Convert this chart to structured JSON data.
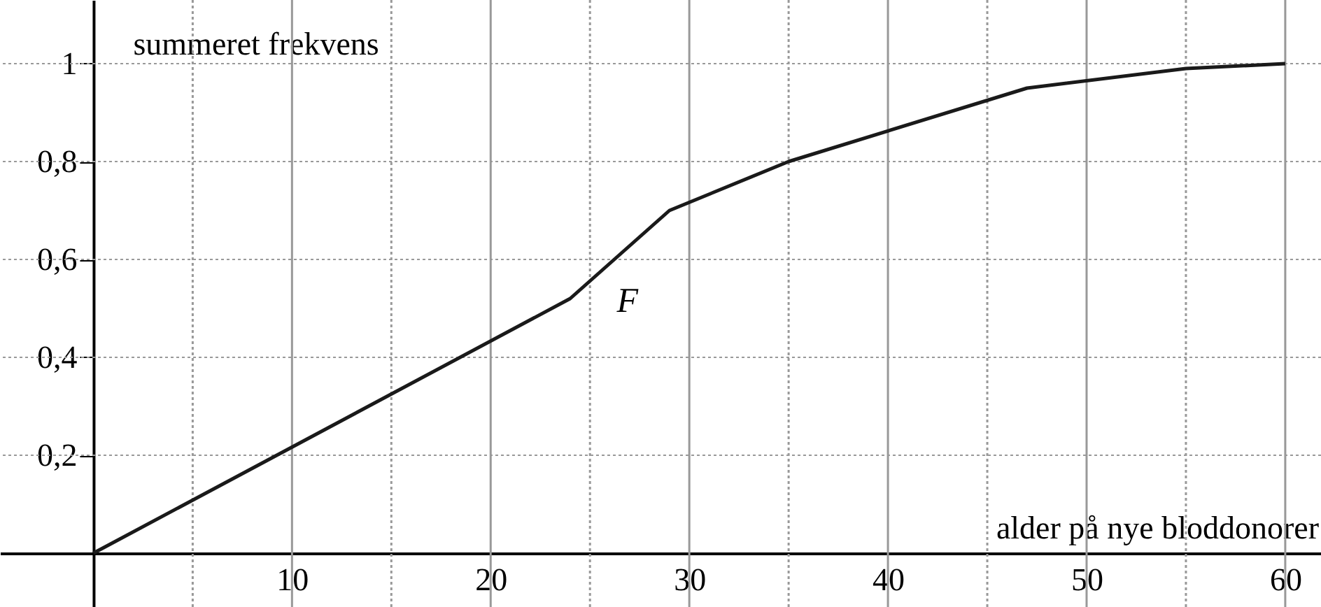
{
  "chart_data": {
    "type": "line",
    "xlabel": "alder på nye bloddonorer",
    "ylabel": "summeret frekvens",
    "x": [
      0,
      24,
      29,
      35,
      47,
      55,
      60
    ],
    "series": [
      {
        "color": "#1a1a1a",
        "values": [
          0,
          0.52,
          0.7,
          0.8,
          0.95,
          0.99,
          1.0
        ]
      }
    ],
    "xlim": [
      -4.7,
      61.8
    ],
    "ylim": [
      -0.11,
      1.13
    ],
    "xticks": [
      {
        "value": 5,
        "label": null
      },
      10,
      {
        "value": 15,
        "label": null
      },
      20,
      {
        "value": 25,
        "label": null
      },
      30,
      {
        "value": 35,
        "label": null
      },
      40,
      {
        "value": 45,
        "label": null
      },
      50,
      {
        "value": 55,
        "label": null
      },
      60
    ],
    "yticks": [
      {
        "value": 0.2,
        "label": "0,2"
      },
      {
        "value": 0.4,
        "label": "0,4"
      },
      {
        "value": 0.6,
        "label": "0,6"
      },
      {
        "value": 0.8,
        "label": "0,8"
      },
      1
    ],
    "annotations": [
      "F"
    ],
    "grid": true,
    "marker": "none",
    "line_style": "solid"
  }
}
